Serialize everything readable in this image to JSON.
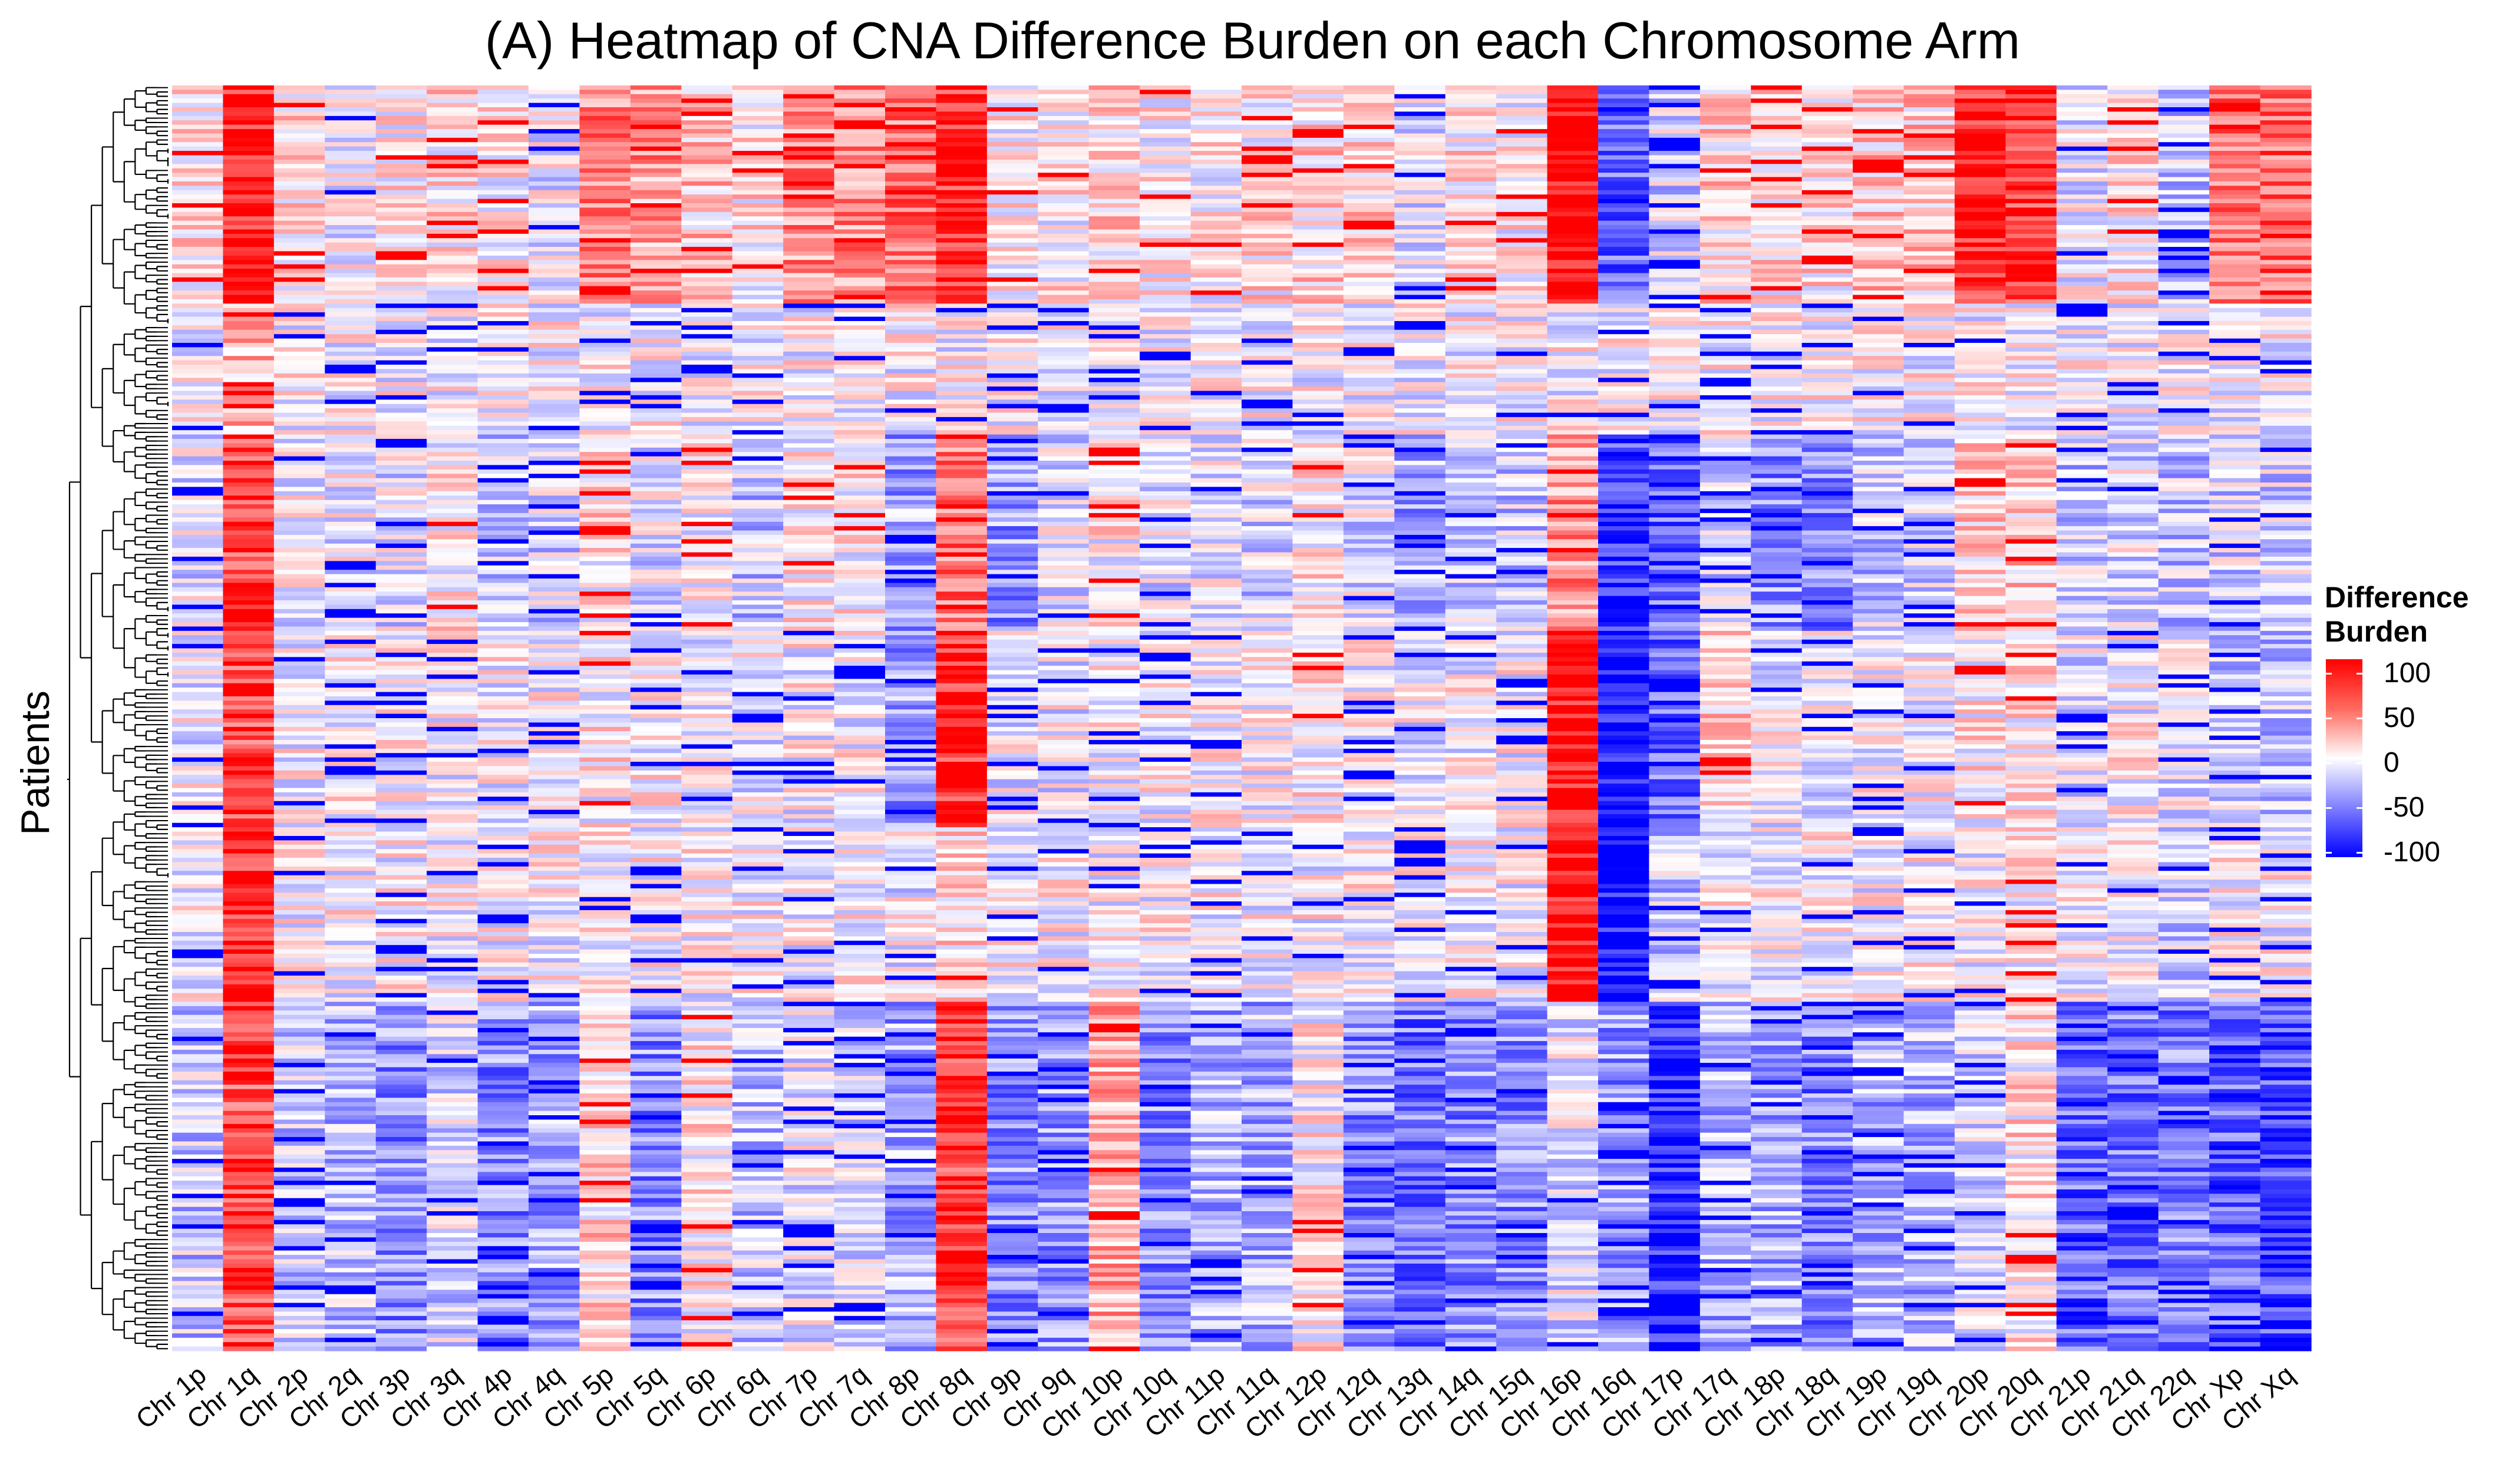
{
  "chart_data": {
    "type": "heatmap",
    "title": "(A) Heatmap of CNA Difference Burden on each Chromosome Arm",
    "xlabel": "",
    "ylabel": "Patients",
    "categories": [
      "Chr 1p",
      "Chr 1q",
      "Chr 2p",
      "Chr 2q",
      "Chr 3p",
      "Chr 3q",
      "Chr 4p",
      "Chr 4q",
      "Chr 5p",
      "Chr 5q",
      "Chr 6p",
      "Chr 6q",
      "Chr 7p",
      "Chr 7q",
      "Chr 8p",
      "Chr 8q",
      "Chr 9p",
      "Chr 9q",
      "Chr 10p",
      "Chr 10q",
      "Chr 11p",
      "Chr 11q",
      "Chr 12p",
      "Chr 12q",
      "Chr 13q",
      "Chr 14q",
      "Chr 15q",
      "Chr 16p",
      "Chr 16q",
      "Chr 17p",
      "Chr 17q",
      "Chr 18p",
      "Chr 18q",
      "Chr 19p",
      "Chr 19q",
      "Chr 20p",
      "Chr 20q",
      "Chr 21p",
      "Chr 21q",
      "Chr 22q",
      "Chr Xp",
      "Chr Xq"
    ],
    "row_clusters": [
      {
        "rows": 50,
        "values": [
          10,
          90,
          10,
          -5,
          5,
          10,
          5,
          -5,
          50,
          40,
          20,
          10,
          45,
          45,
          55,
          85,
          5,
          5,
          15,
          5,
          5,
          10,
          15,
          15,
          -10,
          10,
          5,
          95,
          -60,
          -15,
          15,
          10,
          10,
          20,
          20,
          85,
          80,
          -5,
          10,
          -20,
          55,
          60
        ]
      },
      {
        "rows": 30,
        "values": [
          0,
          30,
          0,
          0,
          0,
          0,
          0,
          0,
          0,
          0,
          0,
          0,
          0,
          0,
          0,
          0,
          0,
          0,
          0,
          0,
          0,
          0,
          0,
          0,
          0,
          0,
          0,
          0,
          0,
          0,
          0,
          0,
          0,
          0,
          0,
          0,
          0,
          0,
          0,
          0,
          0,
          0
        ]
      },
      {
        "rows": 45,
        "values": [
          -10,
          75,
          -5,
          -5,
          -10,
          5,
          -15,
          -15,
          10,
          -10,
          5,
          -20,
          5,
          5,
          -35,
          55,
          -40,
          -10,
          5,
          -10,
          -5,
          -15,
          5,
          -10,
          -35,
          -20,
          -20,
          40,
          -75,
          -60,
          -15,
          -45,
          -50,
          -20,
          -15,
          15,
          20,
          -20,
          -10,
          -20,
          -15,
          -15
        ]
      },
      {
        "rows": 45,
        "values": [
          -5,
          70,
          0,
          0,
          0,
          0,
          0,
          0,
          5,
          0,
          0,
          -5,
          0,
          0,
          -40,
          85,
          -5,
          -5,
          0,
          0,
          0,
          0,
          5,
          0,
          -5,
          0,
          0,
          95,
          -95,
          -55,
          15,
          -5,
          -5,
          0,
          0,
          5,
          10,
          -10,
          0,
          -10,
          -20,
          -20
        ]
      },
      {
        "rows": 40,
        "values": [
          0,
          85,
          0,
          0,
          0,
          0,
          0,
          0,
          0,
          0,
          0,
          0,
          0,
          0,
          -5,
          10,
          0,
          0,
          0,
          0,
          0,
          0,
          0,
          0,
          0,
          0,
          0,
          95,
          -95,
          -20,
          0,
          0,
          0,
          0,
          0,
          0,
          5,
          0,
          0,
          -15,
          0,
          0
        ]
      },
      {
        "rows": 80,
        "values": [
          -20,
          70,
          -20,
          -25,
          -45,
          -15,
          -45,
          -35,
          15,
          -45,
          5,
          -20,
          -5,
          -15,
          -35,
          75,
          -45,
          -40,
          30,
          -45,
          -30,
          -30,
          5,
          -45,
          -55,
          -45,
          -45,
          -10,
          -40,
          -85,
          -30,
          -30,
          -50,
          -30,
          -30,
          -10,
          10,
          -60,
          -55,
          -50,
          -60,
          -70
        ]
      }
    ],
    "color_scale": {
      "title": "Difference Burden",
      "min": -100,
      "max": 100,
      "low": "#0000ff",
      "mid": "#ffffff",
      "high": "#ff0000",
      "ticks": [
        "100",
        "50",
        "0",
        "-50",
        "-100"
      ]
    },
    "grid": false,
    "legend_position": "right"
  }
}
